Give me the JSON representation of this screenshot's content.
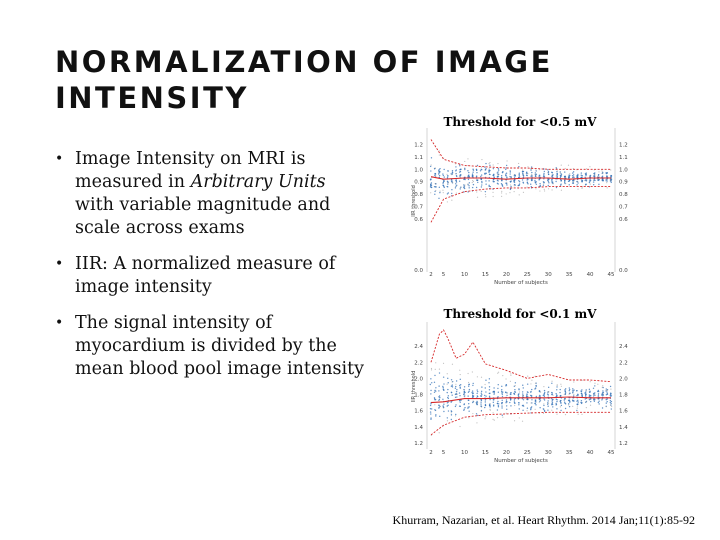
{
  "slide": {
    "title": "NORMALIZATION OF IMAGE INTENSITY",
    "bullets": [
      {
        "before": "Image Intensity on MRI is measured in ",
        "emph": "Arbitrary Units",
        "after": " with variable magnitude and scale across exams"
      },
      {
        "before": "IIR: A normalized measure of image intensity",
        "emph": "",
        "after": ""
      },
      {
        "before": "The signal intensity of myocardium is divided by the mean blood pool image intensity",
        "emph": "",
        "after": ""
      }
    ],
    "bullet_glyph": "•",
    "citation": "Khurram, Nazarian, et al. Heart Rhythm. 2014 Jan;11(1):85-92"
  },
  "chart_data": [
    {
      "type": "scatter",
      "title": "Threshold for <0.5 mV",
      "xlabel": "Number of subjects",
      "ylabel": "IIR threshold",
      "xticks": [
        "2",
        "5",
        "10",
        "15",
        "20",
        "25",
        "30",
        "35",
        "40",
        "45"
      ],
      "yticks": [
        "0.0",
        "0.6",
        "0.7",
        "0.8",
        "0.9",
        "1.0",
        "1.1",
        "1.2"
      ],
      "yticks_right": [
        "0.0",
        "0.6",
        "0.7",
        "0.8",
        "0.9",
        "1.0",
        "1.1",
        "1.2"
      ],
      "xlim": [
        2,
        45
      ],
      "scale_anchors": [
        [
          0.0,
          0.0
        ],
        [
          0.6,
          0.6
        ],
        [
          0.7,
          0.7
        ],
        [
          0.8,
          0.8
        ],
        [
          0.9,
          0.9
        ],
        [
          1.0,
          1.0
        ],
        [
          1.1,
          1.1
        ],
        [
          1.2,
          1.2
        ],
        [
          1.25,
          1.25
        ]
      ],
      "center": 0.93,
      "band_start": 0.22,
      "band_end": 0.07,
      "series": [
        {
          "x": [
            2,
            5,
            10,
            15,
            20,
            25,
            30,
            35,
            40,
            45
          ],
          "y": [
            0.94,
            0.92,
            0.93,
            0.93,
            0.92,
            0.93,
            0.93,
            0.92,
            0.93,
            0.93
          ],
          "color": "#d62728"
        },
        {
          "x": [
            2,
            5,
            10,
            15,
            20,
            25,
            30,
            35,
            40,
            45
          ],
          "y": [
            1.22,
            1.08,
            1.03,
            1.02,
            1.01,
            1.01,
            1.0,
            1.0,
            1.0,
            1.0
          ],
          "color": "#d62728"
        },
        {
          "x": [
            2,
            5,
            10,
            15,
            20,
            25,
            30,
            35,
            40,
            45
          ],
          "y": [
            0.56,
            0.76,
            0.82,
            0.84,
            0.85,
            0.85,
            0.86,
            0.86,
            0.86,
            0.86
          ],
          "color": "#d62728"
        }
      ],
      "point_color": "#2f6fb5",
      "outlier_color": "#9a9a9a",
      "grid": false
    },
    {
      "type": "scatter",
      "title": "Threshold for <0.1 mV",
      "xlabel": "Number of subjects",
      "ylabel": "IIR threshold",
      "xticks": [
        "2",
        "5",
        "10",
        "15",
        "20",
        "25",
        "30",
        "35",
        "40",
        "45"
      ],
      "yticks": [
        "1.2",
        "1.4",
        "1.6",
        "1.8",
        "2.0",
        "2.2",
        "2.4"
      ],
      "yticks_right": [
        "1.2",
        "1.4",
        "1.6",
        "1.8",
        "2.0",
        "2.2",
        "2.4"
      ],
      "xlim": [
        2,
        45
      ],
      "ylim": [
        1.15,
        2.65
      ],
      "center": 1.76,
      "band_start": 0.45,
      "band_end": 0.16,
      "series": [
        {
          "x": [
            2,
            5,
            10,
            15,
            20,
            25,
            30,
            35,
            40,
            45
          ],
          "y": [
            1.7,
            1.71,
            1.75,
            1.75,
            1.76,
            1.76,
            1.76,
            1.77,
            1.76,
            1.76
          ],
          "color": "#d62728"
        },
        {
          "x": [
            2,
            4,
            5,
            6,
            8,
            10,
            12,
            15,
            20,
            25,
            30,
            35,
            40,
            45
          ],
          "y": [
            2.2,
            2.55,
            2.6,
            2.5,
            2.25,
            2.3,
            2.45,
            2.18,
            2.1,
            2.0,
            2.05,
            1.98,
            1.98,
            1.96
          ],
          "color": "#d62728"
        },
        {
          "x": [
            2,
            5,
            10,
            15,
            20,
            25,
            30,
            35,
            40,
            45
          ],
          "y": [
            1.3,
            1.42,
            1.52,
            1.55,
            1.56,
            1.57,
            1.58,
            1.58,
            1.58,
            1.58
          ],
          "color": "#d62728"
        }
      ],
      "point_color": "#2f6fb5",
      "outlier_color": "#9a9a9a",
      "grid": false
    }
  ]
}
